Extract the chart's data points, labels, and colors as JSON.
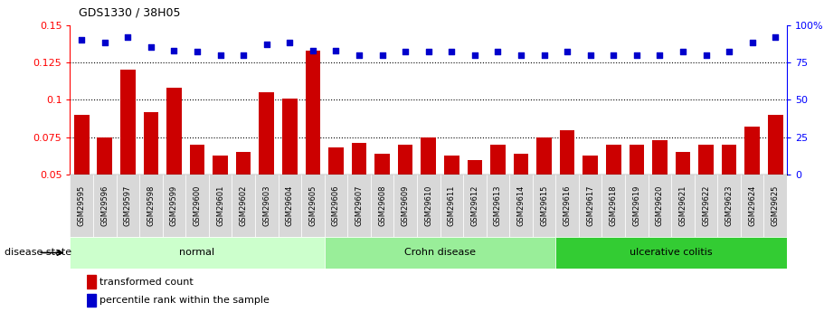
{
  "title": "GDS1330 / 38H05",
  "samples": [
    "GSM29595",
    "GSM29596",
    "GSM29597",
    "GSM29598",
    "GSM29599",
    "GSM29600",
    "GSM29601",
    "GSM29602",
    "GSM29603",
    "GSM29604",
    "GSM29605",
    "GSM29606",
    "GSM29607",
    "GSM29608",
    "GSM29609",
    "GSM29610",
    "GSM29611",
    "GSM29612",
    "GSM29613",
    "GSM29614",
    "GSM29615",
    "GSM29616",
    "GSM29617",
    "GSM29618",
    "GSM29619",
    "GSM29620",
    "GSM29621",
    "GSM29622",
    "GSM29623",
    "GSM29624",
    "GSM29625"
  ],
  "bar_values": [
    0.09,
    0.075,
    0.12,
    0.092,
    0.108,
    0.07,
    0.063,
    0.065,
    0.105,
    0.101,
    0.133,
    0.068,
    0.071,
    0.064,
    0.07,
    0.075,
    0.063,
    0.06,
    0.07,
    0.064,
    0.075,
    0.08,
    0.063,
    0.07,
    0.07,
    0.073,
    0.065,
    0.07,
    0.07,
    0.082,
    0.09
  ],
  "dot_values": [
    90,
    88,
    92,
    85,
    83,
    82,
    80,
    80,
    87,
    88,
    83,
    83,
    80,
    80,
    82,
    82,
    82,
    80,
    82,
    80,
    80,
    82,
    80,
    80,
    80,
    80,
    82,
    80,
    82,
    88,
    92
  ],
  "bar_color": "#cc0000",
  "dot_color": "#0000cc",
  "group_labels": [
    "normal",
    "Crohn disease",
    "ulcerative colitis"
  ],
  "group_ranges": [
    [
      0,
      10
    ],
    [
      11,
      20
    ],
    [
      21,
      30
    ]
  ],
  "group_colors": [
    "#ccffcc",
    "#99ee99",
    "#33cc33"
  ],
  "ylim_left": [
    0.05,
    0.15
  ],
  "ylim_right": [
    0,
    100
  ],
  "yticks_left": [
    0.05,
    0.075,
    0.1,
    0.125,
    0.15
  ],
  "yticks_right": [
    0,
    25,
    50,
    75,
    100
  ],
  "grid_values": [
    0.075,
    0.1,
    0.125
  ],
  "legend_labels": [
    "transformed count",
    "percentile rank within the sample"
  ],
  "disease_state_label": "disease state",
  "tick_bg_color": "#d8d8d8",
  "background_color": "#ffffff"
}
